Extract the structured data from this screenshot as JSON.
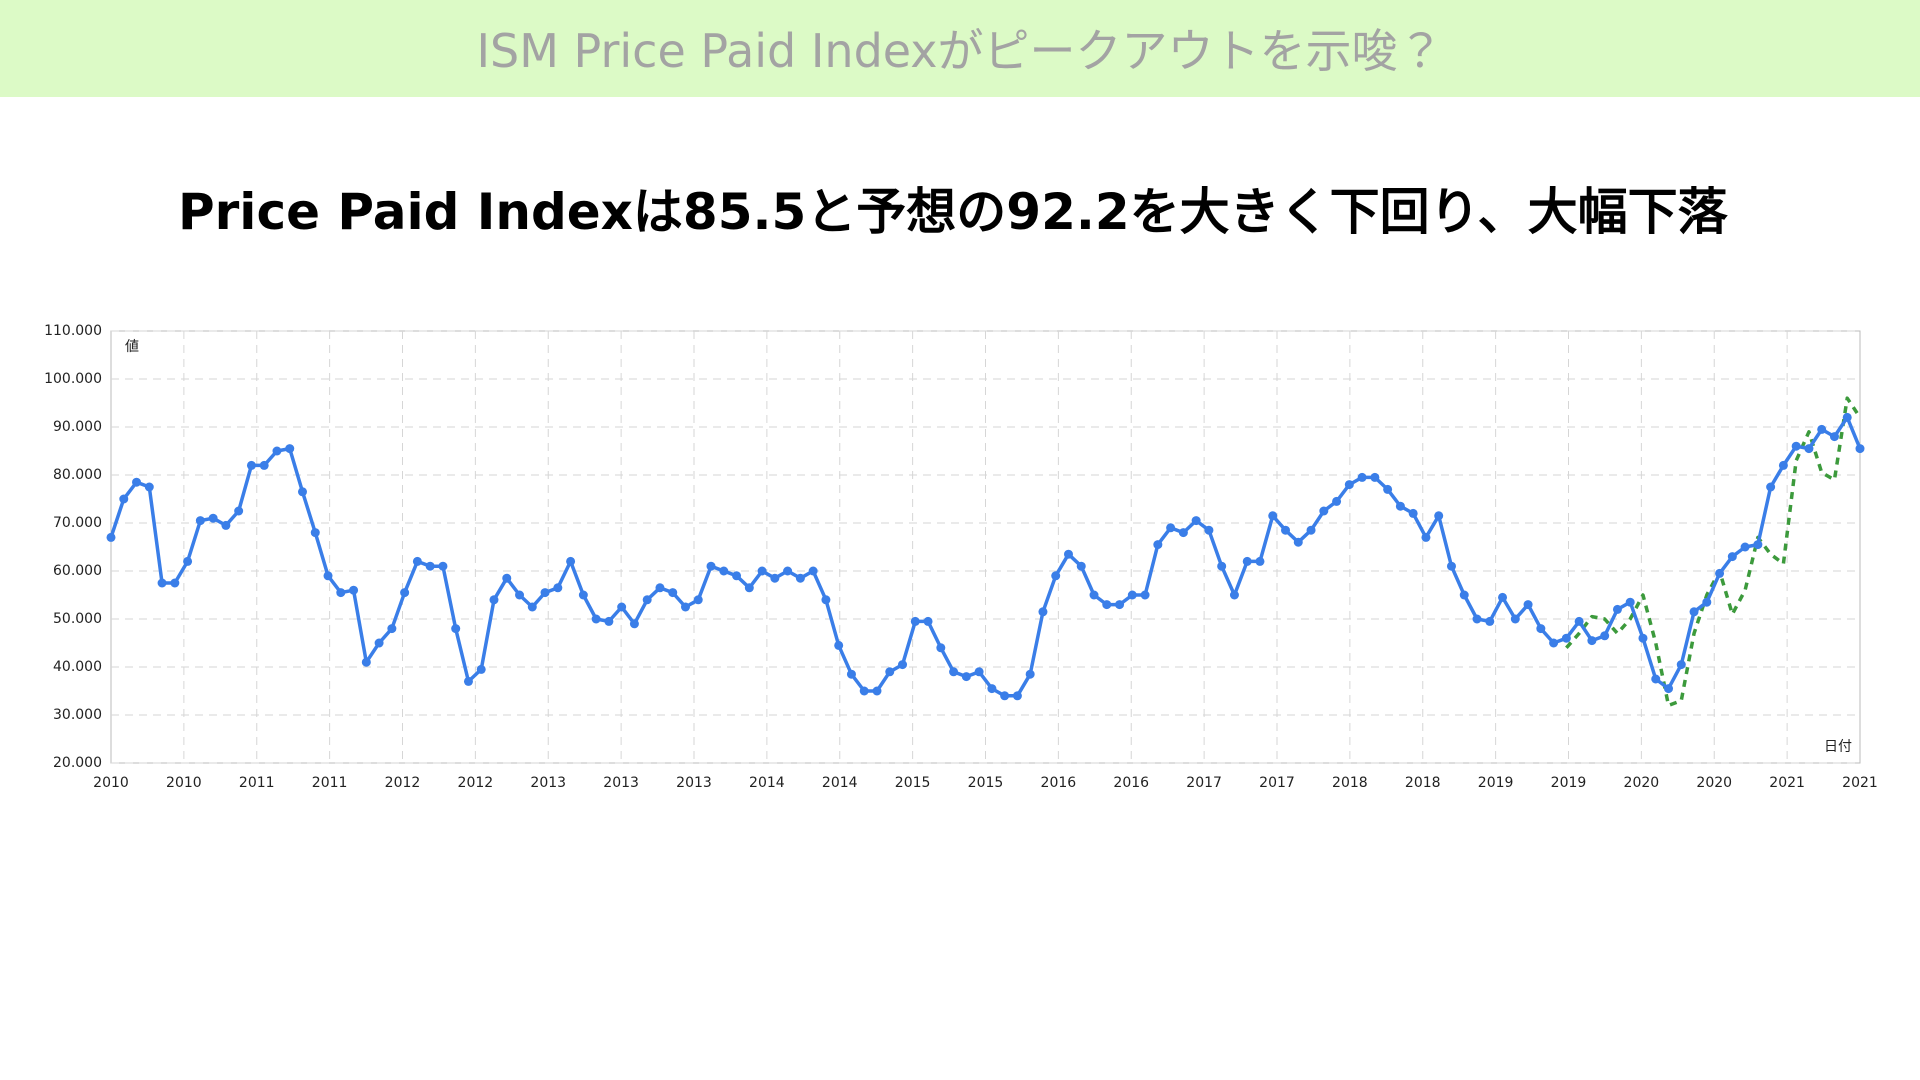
{
  "header": {
    "title": "ISM Price Paid Indexがピークアウトを示唆？"
  },
  "subtitle": "Price Paid Indexは85.5と予想の92.2を大きく下回り、大幅下落",
  "chart_data": {
    "type": "line",
    "y_label": "値",
    "x_label": "日付",
    "ylim": [
      20,
      110
    ],
    "yticks": [
      {
        "value": 20,
        "label": "20.000"
      },
      {
        "value": 30,
        "label": "30.000"
      },
      {
        "value": 40,
        "label": "40.000"
      },
      {
        "value": 50,
        "label": "50.000"
      },
      {
        "value": 60,
        "label": "60.000"
      },
      {
        "value": 70,
        "label": "70.000"
      },
      {
        "value": 80,
        "label": "80.000"
      },
      {
        "value": 90,
        "label": "90.000"
      },
      {
        "value": 100,
        "label": "100.000"
      },
      {
        "value": 110,
        "label": "110.000"
      }
    ],
    "xticks": [
      "2010",
      "2010",
      "2011",
      "2011",
      "2012",
      "2012",
      "2013",
      "2013",
      "2013",
      "2014",
      "2014",
      "2015",
      "2015",
      "2016",
      "2016",
      "2017",
      "2017",
      "2018",
      "2018",
      "2019",
      "2019",
      "2020",
      "2020",
      "2021",
      "2021"
    ],
    "grid": true,
    "series": [
      {
        "color": "#3a7ee8",
        "style": "solid",
        "markers": true,
        "values": [
          67,
          75,
          78.5,
          77.5,
          57.5,
          57.5,
          62,
          70.5,
          71,
          69.5,
          72.5,
          82,
          82,
          85,
          85.5,
          76.5,
          68,
          59,
          55.5,
          56,
          41,
          45,
          48,
          55.5,
          62,
          61,
          61,
          48,
          37,
          39.5,
          54,
          58.5,
          55,
          52.5,
          55.5,
          56.5,
          62,
          55,
          50,
          49.5,
          52.5,
          49,
          54,
          56.5,
          55.5,
          52.5,
          54,
          61,
          60,
          59,
          56.5,
          60,
          58.5,
          60,
          58.5,
          60,
          54,
          44.5,
          38.5,
          35,
          35,
          39,
          40.5,
          49.5,
          49.5,
          44,
          39,
          38,
          39,
          35.5,
          34,
          34,
          38.5,
          51.5,
          59,
          63.5,
          61,
          55,
          53,
          53,
          55,
          55,
          65.5,
          69,
          68,
          70.5,
          68.5,
          61,
          55,
          62,
          62,
          71.5,
          68.5,
          66,
          68.5,
          72.5,
          74.5,
          78,
          79.5,
          79.5,
          77,
          73.5,
          72,
          67,
          71.5,
          61,
          55,
          50,
          49.5,
          54.5,
          50,
          53,
          48,
          45,
          46,
          49.5,
          45.5,
          46.5,
          52,
          53.5,
          46,
          37.5,
          35.5,
          40.5,
          51.5,
          53.5,
          59.5,
          63,
          65,
          65.5,
          77.5,
          82,
          86,
          85.5,
          89.5,
          88,
          92,
          85.5
        ]
      },
      {
        "color": "#3c9a3c",
        "style": "dashed",
        "markers": false,
        "values": [
          null,
          null,
          null,
          null,
          null,
          null,
          null,
          null,
          null,
          null,
          null,
          null,
          null,
          null,
          null,
          null,
          null,
          null,
          null,
          null,
          null,
          null,
          null,
          null,
          null,
          null,
          null,
          null,
          null,
          null,
          null,
          null,
          null,
          null,
          null,
          null,
          null,
          null,
          null,
          null,
          null,
          null,
          null,
          null,
          null,
          null,
          null,
          null,
          null,
          null,
          null,
          null,
          null,
          null,
          null,
          null,
          null,
          null,
          null,
          null,
          null,
          null,
          null,
          null,
          null,
          null,
          null,
          null,
          null,
          null,
          null,
          null,
          null,
          null,
          null,
          null,
          null,
          null,
          null,
          null,
          null,
          null,
          null,
          null,
          null,
          null,
          null,
          null,
          null,
          null,
          null,
          null,
          null,
          null,
          null,
          null,
          null,
          null,
          null,
          null,
          null,
          null,
          null,
          null,
          null,
          null,
          null,
          null,
          null,
          null,
          null,
          null,
          null,
          null,
          44,
          47,
          50.5,
          50,
          47,
          50,
          55,
          45,
          32,
          33,
          47,
          55,
          60,
          51,
          56,
          67,
          63.5,
          61.5,
          83,
          89,
          80.5,
          79,
          96,
          92
        ]
      }
    ]
  }
}
